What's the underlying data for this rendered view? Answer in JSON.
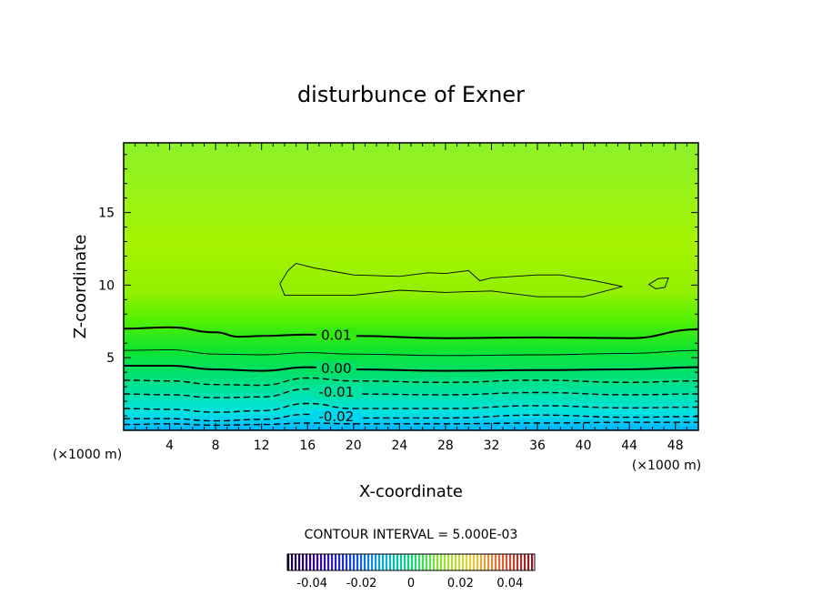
{
  "chart_data": {
    "type": "heatmap",
    "title": "disturbunce of Exner",
    "xlabel": "X-coordinate",
    "ylabel": "Z-coordinate",
    "x_unit": "(×1000 m)",
    "x_unit_right": "(×1000 m)",
    "xlim": [
      0,
      50
    ],
    "ylim": [
      0,
      19.8
    ],
    "x_ticks": [
      "4",
      "8",
      "12",
      "16",
      "20",
      "24",
      "28",
      "32",
      "36",
      "40",
      "44",
      "48"
    ],
    "y_ticks": [
      "5",
      "10",
      "15"
    ],
    "x_tick_values": [
      4,
      8,
      12,
      16,
      20,
      24,
      28,
      32,
      36,
      40,
      44,
      48
    ],
    "y_tick_values": [
      5,
      10,
      15
    ],
    "contour_interval_text": "CONTOUR INTERVAL = 5.000E-03",
    "contour_interval": 0.005,
    "field_value_range": [
      -0.03,
      0.025
    ],
    "contours": [
      {
        "level": -0.025,
        "label": "",
        "style": "dashed",
        "x": [
          0,
          4,
          8,
          12,
          16,
          20,
          28,
          36,
          44,
          50
        ],
        "z": [
          0.4,
          0.45,
          0.35,
          0.4,
          0.5,
          0.45,
          0.45,
          0.5,
          0.55,
          0.55
        ]
      },
      {
        "level": -0.02,
        "label": "-0.02",
        "style": "dashed",
        "x": [
          0,
          4,
          8,
          12,
          16,
          20,
          28,
          36,
          44,
          50
        ],
        "z": [
          0.8,
          0.8,
          0.65,
          0.75,
          1.1,
          0.85,
          0.85,
          1.05,
          0.9,
          0.95
        ]
      },
      {
        "level": -0.015,
        "label": "",
        "style": "dashed",
        "x": [
          0,
          4,
          8,
          12,
          16,
          20,
          28,
          36,
          44,
          50
        ],
        "z": [
          1.5,
          1.45,
          1.25,
          1.35,
          1.85,
          1.5,
          1.5,
          1.7,
          1.55,
          1.6
        ]
      },
      {
        "level": -0.01,
        "label": "-0.01",
        "style": "dashed",
        "x": [
          0,
          4,
          8,
          12,
          16,
          20,
          28,
          36,
          44,
          50
        ],
        "z": [
          2.5,
          2.45,
          2.25,
          2.3,
          2.85,
          2.5,
          2.45,
          2.6,
          2.45,
          2.5
        ]
      },
      {
        "level": -0.005,
        "label": "",
        "style": "dashed",
        "x": [
          0,
          4,
          8,
          12,
          16,
          20,
          28,
          36,
          44,
          50
        ],
        "z": [
          3.45,
          3.4,
          3.15,
          3.1,
          3.6,
          3.4,
          3.3,
          3.45,
          3.3,
          3.4
        ]
      },
      {
        "level": 0.0,
        "label": "0.00",
        "style": "solid-thick",
        "x": [
          0,
          4,
          8,
          12,
          16,
          20,
          28,
          36,
          44,
          50
        ],
        "z": [
          4.45,
          4.45,
          4.2,
          4.1,
          4.35,
          4.2,
          4.1,
          4.15,
          4.2,
          4.35
        ]
      },
      {
        "level": 0.005,
        "label": "",
        "style": "solid",
        "x": [
          0,
          4,
          8,
          12,
          16,
          20,
          28,
          36,
          44,
          50
        ],
        "z": [
          5.5,
          5.55,
          5.25,
          5.2,
          5.35,
          5.25,
          5.15,
          5.2,
          5.3,
          5.5
        ]
      },
      {
        "level": 0.01,
        "label": "0.01",
        "style": "solid-thick",
        "x": [
          0,
          4,
          8,
          10,
          12,
          16,
          20,
          28,
          36,
          44,
          50
        ],
        "z": [
          7.0,
          7.1,
          6.75,
          6.45,
          6.5,
          6.6,
          6.5,
          6.35,
          6.4,
          6.35,
          6.95
        ]
      },
      {
        "level": 0.02,
        "label": "",
        "style": "solid",
        "closed": true,
        "x": [
          13.6,
          14.3,
          15.0,
          16.5,
          20.0,
          24.0,
          26.5,
          28.0,
          30.0,
          31.0,
          32.0,
          36.0,
          38.0,
          41.0,
          43.4,
          40.0,
          36.0,
          32.0,
          28.0,
          24.0,
          20.0,
          16.0,
          14.0,
          13.6
        ],
        "z": [
          10.1,
          11.0,
          11.5,
          11.2,
          10.7,
          10.6,
          10.85,
          10.8,
          11.0,
          10.3,
          10.5,
          10.7,
          10.7,
          10.3,
          9.9,
          9.2,
          9.2,
          9.6,
          9.5,
          9.65,
          9.3,
          9.3,
          9.3,
          10.1
        ]
      },
      {
        "level": 0.02,
        "label": "",
        "style": "solid",
        "closed": true,
        "x": [
          45.7,
          46.5,
          47.4,
          47.1,
          46.3,
          45.7
        ],
        "z": [
          10.05,
          10.45,
          10.5,
          9.85,
          9.75,
          10.05
        ]
      }
    ],
    "colorbar": {
      "ticks": [
        "-0.04",
        "-0.02",
        "0",
        "0.02",
        "0.04"
      ],
      "tick_values": [
        -0.04,
        -0.02,
        0,
        0.02,
        0.04
      ],
      "range": [
        -0.05,
        0.05
      ]
    }
  }
}
